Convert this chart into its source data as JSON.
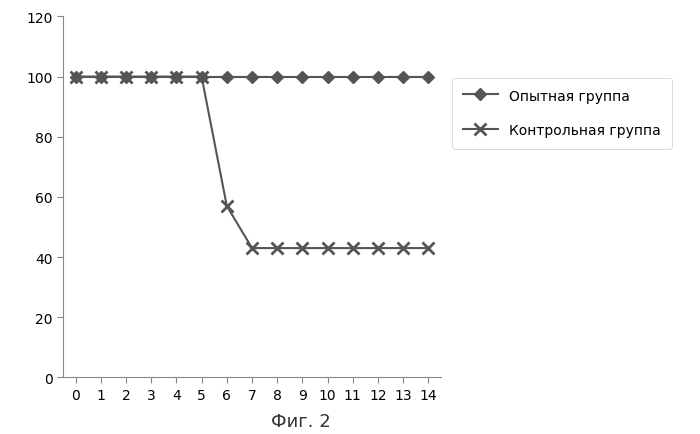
{
  "x": [
    0,
    1,
    2,
    3,
    4,
    5,
    6,
    7,
    8,
    9,
    10,
    11,
    12,
    13,
    14
  ],
  "experimental": [
    100,
    100,
    100,
    100,
    100,
    100,
    100,
    100,
    100,
    100,
    100,
    100,
    100,
    100,
    100
  ],
  "control": [
    100,
    100,
    100,
    100,
    100,
    100,
    57,
    43,
    43,
    43,
    43,
    43,
    43,
    43,
    43
  ],
  "line_color": "#555555",
  "marker_exp": "D",
  "marker_ctrl": "x",
  "label_exp": "Опытная группа",
  "label_ctrl": "Контрольная группа",
  "ylim": [
    0,
    120
  ],
  "xlim": [
    -0.5,
    14.5
  ],
  "yticks": [
    0,
    20,
    40,
    60,
    80,
    100,
    120
  ],
  "xticks": [
    0,
    1,
    2,
    3,
    4,
    5,
    6,
    7,
    8,
    9,
    10,
    11,
    12,
    13,
    14
  ],
  "caption": "Фиг. 2",
  "background_color": "#ffffff",
  "markersize_exp": 6,
  "markersize_ctrl": 9,
  "linewidth": 1.5,
  "fontsize_ticks": 10,
  "fontsize_legend": 10,
  "fontsize_caption": 13
}
